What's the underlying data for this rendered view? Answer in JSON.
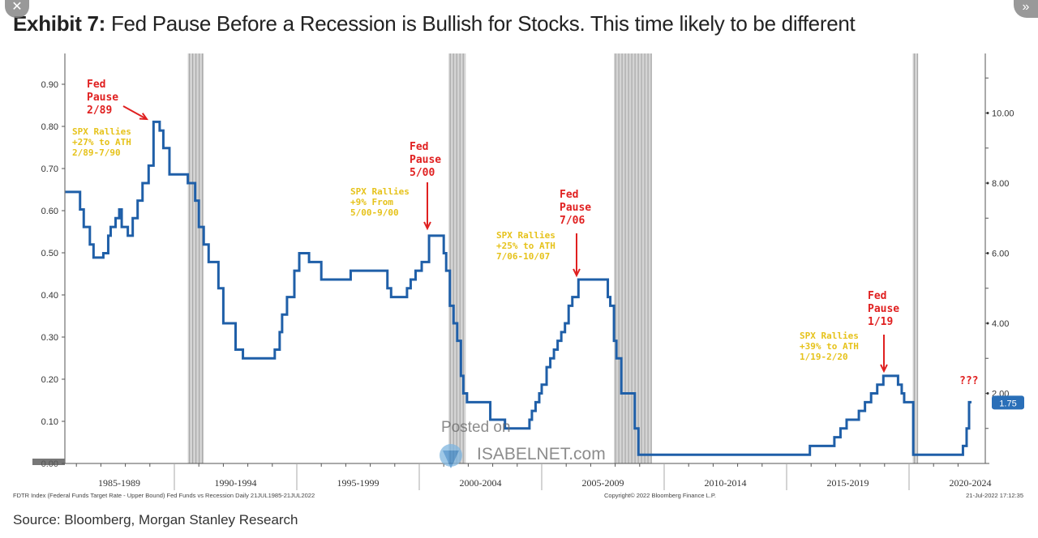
{
  "title": {
    "bold": "Exhibit 7:",
    "rest": " Fed Pause Before a Recession is Bullish for Stocks. This time likely to be different"
  },
  "source": "Source: Bloomberg, Morgan Stanley Research",
  "footer": {
    "left": "FDTR Index (Federal Funds Target Rate - Upper Bound) Fed Funds vs Recession  Daily 21JUL1985-21JUL2022",
    "center": "Copyright© 2022 Bloomberg Finance L.P.",
    "right": "21-Jul-2022 17:12:35"
  },
  "watermark": {
    "line1": "Posted on",
    "line2": "ISABELNET.com"
  },
  "controls": {
    "close": "✕",
    "more": "»"
  },
  "chart_data": {
    "type": "line",
    "step": true,
    "line_color": "#1f5fa8",
    "recession_color": "#b8b8b8",
    "x_tick_labels": [
      "1985-1989",
      "1990-1994",
      "1995-1999",
      "2000-2004",
      "2005-2009",
      "2010-2014",
      "2015-2019",
      "2020-2024"
    ],
    "xlim": [
      1985.55,
      2023.1
    ],
    "left_axis": {
      "ticks": [
        "0.90",
        "0.80",
        "0.70",
        "0.60",
        "0.50",
        "0.40",
        "0.30",
        "0.20",
        "0.10",
        "0.00"
      ]
    },
    "right_axis": {
      "ticks": [
        "10.00",
        "8.00",
        "6.00",
        "4.00",
        "2.00"
      ],
      "ylim": [
        0,
        11.7
      ],
      "last_value_label": "1.75"
    },
    "recessions": [
      [
        1990.55,
        1991.2
      ],
      [
        2001.2,
        2001.9
      ],
      [
        2007.95,
        2009.5
      ],
      [
        2020.15,
        2020.35
      ]
    ],
    "series": [
      {
        "x": [
          1985.55,
          1986.15,
          1986.3,
          1986.55,
          1986.7,
          1987.1,
          1987.3,
          1987.4,
          1987.6,
          1987.75,
          1987.85,
          1988.1,
          1988.3,
          1988.5,
          1988.7,
          1988.95,
          1989.15,
          1989.4,
          1989.55,
          1989.8,
          1990.55,
          1990.85,
          1991.0,
          1991.2,
          1991.4,
          1991.8,
          1992.0,
          1992.5,
          1992.8,
          1994.1,
          1994.3,
          1994.4,
          1994.6,
          1994.9,
          1995.1,
          1995.5,
          1996.0,
          1997.2,
          1998.7,
          1998.85,
          1999.5,
          1999.65,
          1999.85,
          2000.1,
          2000.4,
          2001.0,
          2001.1,
          2001.25,
          2001.4,
          2001.55,
          2001.7,
          2001.8,
          2001.95,
          2002.9,
          2003.5,
          2004.5,
          2004.6,
          2004.75,
          2004.9,
          2005.0,
          2005.2,
          2005.35,
          2005.5,
          2005.65,
          2005.8,
          2005.95,
          2006.1,
          2006.25,
          2006.5,
          2007.7,
          2007.8,
          2007.95,
          2008.05,
          2008.25,
          2008.8,
          2008.95,
          2015.95,
          2016.95,
          2017.2,
          2017.45,
          2017.95,
          2018.2,
          2018.45,
          2018.7,
          2018.95,
          2019.55,
          2019.7,
          2019.8,
          2020.17,
          2022.2,
          2022.35,
          2022.45,
          2022.55
        ],
        "y": [
          7.75,
          7.25,
          6.75,
          6.25,
          5.875,
          6.0,
          6.5,
          6.75,
          7.0,
          7.25,
          6.75,
          6.5,
          7.0,
          7.5,
          8.0,
          8.5,
          9.75,
          9.5,
          9.0,
          8.25,
          8.0,
          7.5,
          6.75,
          6.25,
          5.75,
          5.0,
          4.0,
          3.25,
          3.0,
          3.25,
          3.75,
          4.25,
          4.75,
          5.5,
          6.0,
          5.75,
          5.25,
          5.5,
          5.0,
          4.75,
          5.0,
          5.25,
          5.5,
          5.75,
          6.5,
          6.0,
          5.5,
          4.5,
          4.0,
          3.5,
          2.5,
          2.0,
          1.75,
          1.25,
          1.0,
          1.25,
          1.5,
          1.75,
          2.0,
          2.25,
          2.75,
          3.0,
          3.25,
          3.5,
          3.75,
          4.0,
          4.5,
          4.75,
          5.25,
          4.75,
          4.5,
          3.5,
          3.0,
          2.0,
          1.0,
          0.25,
          0.5,
          0.75,
          1.0,
          1.25,
          1.5,
          1.75,
          2.0,
          2.25,
          2.5,
          2.25,
          2.0,
          1.75,
          0.25,
          0.5,
          1.0,
          1.75,
          1.75
        ]
      }
    ],
    "annotations": [
      {
        "kind": "pause",
        "text": [
          "Fed",
          "Pause",
          "2/89"
        ],
        "color": "#e02020"
      },
      {
        "kind": "rally",
        "text": [
          "SPX Rallies",
          "+27% to ATH",
          "2/89-7/90"
        ],
        "color": "#e6c21a"
      },
      {
        "kind": "pause",
        "text": [
          "Fed",
          "Pause",
          "5/00"
        ],
        "color": "#e02020"
      },
      {
        "kind": "rally",
        "text": [
          "SPX Rallies",
          "+9% From",
          "5/00-9/00"
        ],
        "color": "#e6c21a"
      },
      {
        "kind": "pause",
        "text": [
          "Fed",
          "Pause",
          "7/06"
        ],
        "color": "#e02020"
      },
      {
        "kind": "rally",
        "text": [
          "SPX Rallies",
          "+25% to ATH",
          "7/06-10/07"
        ],
        "color": "#e6c21a"
      },
      {
        "kind": "pause",
        "text": [
          "Fed",
          "Pause",
          "1/19"
        ],
        "color": "#e02020"
      },
      {
        "kind": "rally",
        "text": [
          "SPX Rallies",
          "+39% to ATH",
          "1/19-2/20"
        ],
        "color": "#e6c21a"
      },
      {
        "kind": "question",
        "text": [
          "???"
        ],
        "color": "#e02020"
      }
    ]
  }
}
